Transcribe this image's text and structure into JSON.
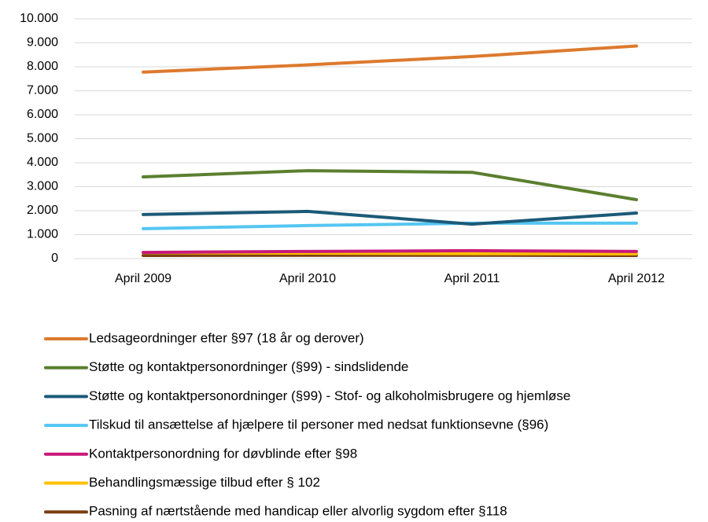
{
  "chart_data": {
    "type": "line",
    "categories": [
      "April 2009",
      "April 2010",
      "April 2011",
      "April 2012"
    ],
    "series": [
      {
        "name": "Ledsageordninger efter §97 (18 år og derover)",
        "color": "#dd7a2e",
        "values": [
          7780,
          8080,
          8430,
          8870
        ]
      },
      {
        "name": "Støtte og kontaktpersonordninger (§99) - sindslidende",
        "color": "#5b7f2f",
        "values": [
          3410,
          3670,
          3600,
          2460
        ]
      },
      {
        "name": "Støtte og kontaktpersonordninger (§99) - Stof- og alkoholmisbrugere og hjemløse",
        "color": "#1c5a78",
        "values": [
          1840,
          1970,
          1440,
          1900
        ]
      },
      {
        "name": "Tilskud til ansættelse af hjælpere til personer med nedsat funktionsevne (§96)",
        "color": "#55c6f2",
        "values": [
          1250,
          1380,
          1480,
          1480
        ]
      },
      {
        "name": "Kontaktpersonordning for døvblinde efter §98",
        "color": "#c8197b",
        "values": [
          260,
          300,
          330,
          300
        ]
      },
      {
        "name": "Behandlingsmæssige tilbud efter § 102",
        "color": "#ffc000",
        "values": [
          250,
          230,
          210,
          200
        ]
      },
      {
        "name": "Pasning af nærtstående med handicap eller alvorlig sygdom efter §118",
        "color": "#7b3f12",
        "values": [
          130,
          140,
          140,
          130
        ]
      }
    ],
    "ylim": [
      0,
      10000
    ],
    "yticks": [
      0,
      {
        "value": 1000,
        "label": "1.000"
      },
      {
        "value": 2000,
        "label": "2.000"
      },
      {
        "value": 3000,
        "label": "3.000"
      },
      {
        "value": 4000,
        "label": "4.000"
      },
      {
        "value": 5000,
        "label": "5.000"
      },
      {
        "value": 6000,
        "label": "6.000"
      },
      {
        "value": 7000,
        "label": "7.000"
      },
      {
        "value": 8000,
        "label": "8.000"
      },
      {
        "value": 9000,
        "label": "9.000"
      },
      {
        "value": 10000,
        "label": "10.000"
      }
    ],
    "grid": true,
    "legend": "bottom"
  }
}
